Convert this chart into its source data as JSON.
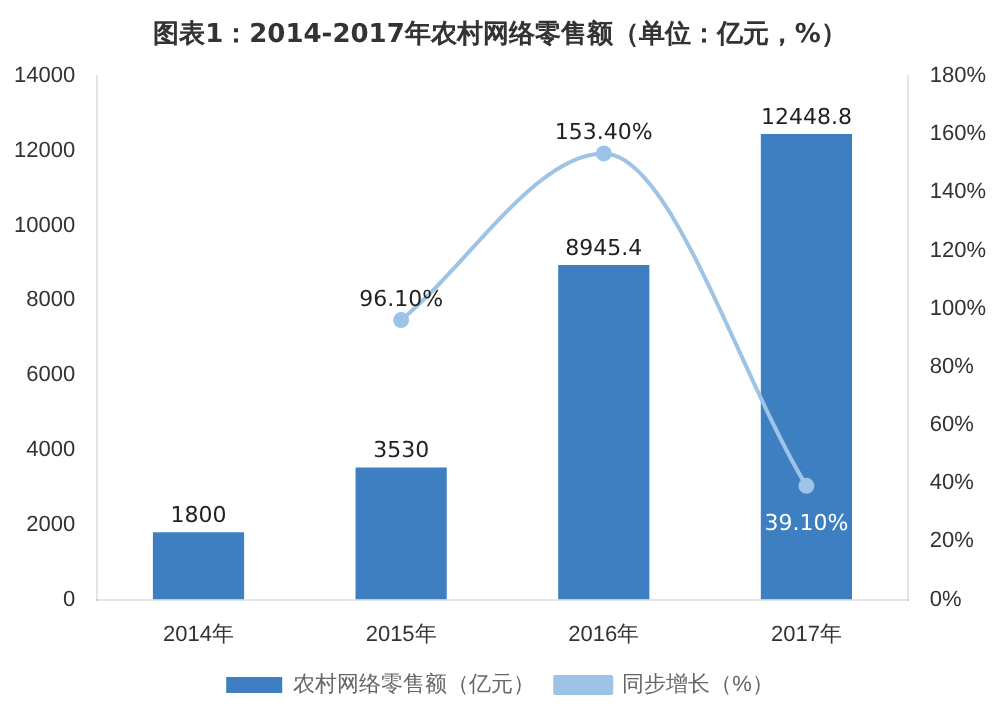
{
  "chart_data": {
    "type": "bar",
    "title": "图表1：2014-2017年农村网络零售额（单位：亿元，%）",
    "categories": [
      "2014年",
      "2015年",
      "2016年",
      "2017年"
    ],
    "series": [
      {
        "name": "农村网络零售额（亿元）",
        "color": "#3d7fc1",
        "values": [
          1800,
          3530,
          8945.4,
          12448.8
        ],
        "value_labels": [
          "1800",
          "3530",
          "8945.4",
          "12448.8"
        ]
      },
      {
        "name": "同步增长（%）",
        "type": "line",
        "axis": "y2",
        "color": "#9dc3e6",
        "values": [
          null,
          96.1,
          153.4,
          39.1
        ],
        "value_labels": [
          null,
          "96.10%",
          "153.40%",
          "39.10%"
        ]
      }
    ],
    "ylim": [
      0,
      14000
    ],
    "yticks": [
      0,
      2000,
      4000,
      6000,
      8000,
      10000,
      12000,
      14000
    ],
    "y2lim": [
      0,
      180
    ],
    "y2ticks": [
      {
        "value": 0,
        "label": "0%"
      },
      {
        "value": 20,
        "label": "20%"
      },
      {
        "value": 40,
        "label": "40%"
      },
      {
        "value": 60,
        "label": "60%"
      },
      {
        "value": 80,
        "label": "80%"
      },
      {
        "value": 100,
        "label": "100%"
      },
      {
        "value": 120,
        "label": "120%"
      },
      {
        "value": 140,
        "label": "140%"
      },
      {
        "value": 160,
        "label": "160%"
      },
      {
        "value": 180,
        "label": "180%"
      }
    ],
    "legend": "bottom",
    "marker": "circle",
    "grid": false
  }
}
